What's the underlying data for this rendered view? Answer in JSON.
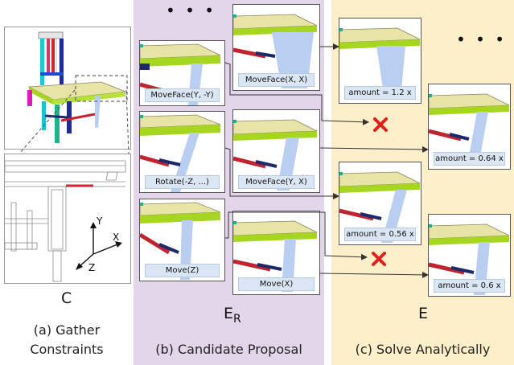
{
  "sections": {
    "a": {
      "variable": "C",
      "caption_line1": "(a) Gather",
      "caption_line2": "Constraints"
    },
    "b": {
      "variable": "E",
      "variable_sub": "R",
      "caption": "(b) Candidate Proposal"
    },
    "c": {
      "variable": "E",
      "caption": "(c) Solve Analytically"
    }
  },
  "ellipsis": "• • •",
  "axes": {
    "y": "Y",
    "x": "X",
    "z": "Z"
  },
  "proposals": [
    {
      "label": "MoveFace(Y, -Y)"
    },
    {
      "label": "MoveFace(X, X)"
    },
    {
      "label": "Rotate(-Z, ...)"
    },
    {
      "label": "MoveFace(Y, X)"
    },
    {
      "label": "Move(Z)"
    },
    {
      "label": "Move(X)"
    }
  ],
  "solutions": [
    {
      "label": "amount = 1.2 x"
    },
    {
      "label": "amount = 0.64 x"
    },
    {
      "label": "amount = 0.56 x"
    },
    {
      "label": "amount = 0.6 x"
    }
  ],
  "colors": {
    "purple_bg": "#e3d5ea",
    "yellow_bg": "#fcefc9",
    "tabletop": "#e8e3a6",
    "apron": "#a6d620",
    "leg": "#b9cef0",
    "stretcher": "#c0242f",
    "stretcher_dark": "#1c2a6b",
    "reject": "#e0201b"
  }
}
